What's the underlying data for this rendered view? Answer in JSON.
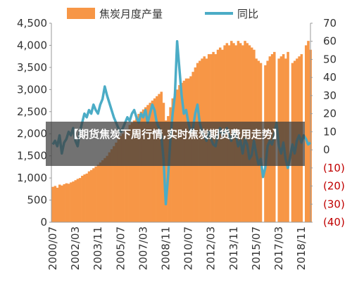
{
  "chart_data": {
    "type": "bar_line",
    "overlay_text": "【期货焦炭下周行情,实时焦炭期货费用走势】",
    "categories": [
      "2000/07",
      null,
      null,
      null,
      null,
      null,
      null,
      null,
      null,
      null,
      "2002/03",
      null,
      null,
      null,
      null,
      null,
      null,
      null,
      null,
      null,
      "2003/11",
      null,
      null,
      null,
      null,
      null,
      null,
      null,
      null,
      null,
      "2005/07",
      null,
      null,
      null,
      null,
      null,
      null,
      null,
      null,
      null,
      "2007/03",
      null,
      null,
      null,
      null,
      null,
      null,
      null,
      null,
      null,
      "2008/11",
      null,
      null,
      null,
      null,
      null,
      null,
      null,
      null,
      null,
      "2010/07",
      null,
      null,
      null,
      null,
      null,
      null,
      null,
      null,
      null,
      "2012/03",
      null,
      null,
      null,
      null,
      null,
      null,
      null,
      null,
      null,
      "2013/11",
      null,
      null,
      null,
      null,
      null,
      null,
      null,
      null,
      null,
      "2015/07",
      null,
      null,
      null,
      null,
      null,
      null,
      null,
      null,
      null,
      "2017/03",
      null,
      null,
      null,
      null,
      null,
      null,
      null,
      null,
      null,
      "2018/11",
      null,
      null,
      null,
      null
    ],
    "series": [
      {
        "name": "焦炭月度产量",
        "type": "bar",
        "color": "#f79646",
        "values": [
          800,
          820,
          780,
          850,
          830,
          860,
          880,
          870,
          900,
          920,
          950,
          980,
          1000,
          1050,
          1080,
          1100,
          1150,
          1180,
          1220,
          1260,
          1300,
          1350,
          1400,
          1450,
          1500,
          1580,
          1650,
          1720,
          1800,
          1900,
          1950,
          2000,
          2050,
          2100,
          2200,
          2250,
          2300,
          2350,
          2450,
          2500,
          2550,
          2600,
          2650,
          2700,
          2750,
          2800,
          2850,
          2900,
          2950,
          2700,
          2300,
          2400,
          2600,
          2800,
          2900,
          3000,
          3100,
          3150,
          3200,
          3250,
          3250,
          3300,
          3400,
          3500,
          3600,
          3650,
          3700,
          3750,
          3700,
          3800,
          3800,
          3850,
          3800,
          3900,
          3950,
          3900,
          4000,
          4050,
          4000,
          4100,
          4050,
          4000,
          4100,
          4050,
          4000,
          4100,
          4050,
          4000,
          3950,
          3900,
          3700,
          3650,
          3600,
          null,
          3550,
          3650,
          3750,
          3800,
          3850,
          null,
          3700,
          3750,
          3800,
          3700,
          3850,
          null,
          3600,
          3650,
          3700,
          3750,
          3800,
          null,
          4000,
          4100,
          3900
        ]
      },
      {
        "name": "同比",
        "type": "line",
        "axis": "y2",
        "color": "#4bacc6",
        "values": [
          3,
          5,
          2,
          8,
          -2,
          4,
          6,
          10,
          8,
          12,
          5,
          2,
          10,
          15,
          20,
          18,
          22,
          20,
          25,
          22,
          20,
          25,
          28,
          35,
          30,
          26,
          22,
          18,
          15,
          12,
          10,
          12,
          15,
          18,
          16,
          20,
          22,
          18,
          15,
          20,
          18,
          22,
          15,
          20,
          25,
          22,
          15,
          12,
          8,
          -5,
          -30,
          -15,
          5,
          20,
          30,
          60,
          45,
          30,
          20,
          22,
          15,
          10,
          12,
          20,
          25,
          15,
          10,
          8,
          5,
          10,
          6,
          3,
          2,
          8,
          12,
          8,
          10,
          12,
          8,
          5,
          10,
          8,
          2,
          5,
          -2,
          6,
          3,
          -5,
          -3,
          5,
          -2,
          -8,
          -5,
          -15,
          -10,
          2,
          5,
          3,
          8,
          15,
          2,
          -2,
          4,
          -5,
          -10,
          -4,
          3,
          -2,
          5,
          8,
          4,
          8,
          6,
          3,
          4
        ]
      }
    ],
    "ylim": [
      0,
      4500
    ],
    "yticks": [
      0,
      500,
      {
        "value": 1000,
        "label": "1,000"
      },
      {
        "value": 1500,
        "label": "1,500"
      },
      {
        "value": 2000,
        "label": "2,000"
      },
      {
        "value": 2500,
        "label": "2,500"
      },
      {
        "value": 3000,
        "label": "3,000"
      },
      {
        "value": 3500,
        "label": "3,500"
      },
      {
        "value": 4000,
        "label": "4,000"
      },
      {
        "value": 4500,
        "label": "4,500"
      }
    ],
    "y2lim": [
      -40,
      70
    ],
    "y2ticks": [
      {
        "value": -40,
        "label": "(40)"
      },
      {
        "value": -30,
        "label": "(30)"
      },
      {
        "value": -20,
        "label": "(20)"
      },
      {
        "value": -10,
        "label": "(10)"
      },
      0,
      10,
      20,
      30,
      40,
      50,
      60,
      70
    ],
    "y2_negative_color": "#c00000",
    "axis_color": "#999999"
  }
}
